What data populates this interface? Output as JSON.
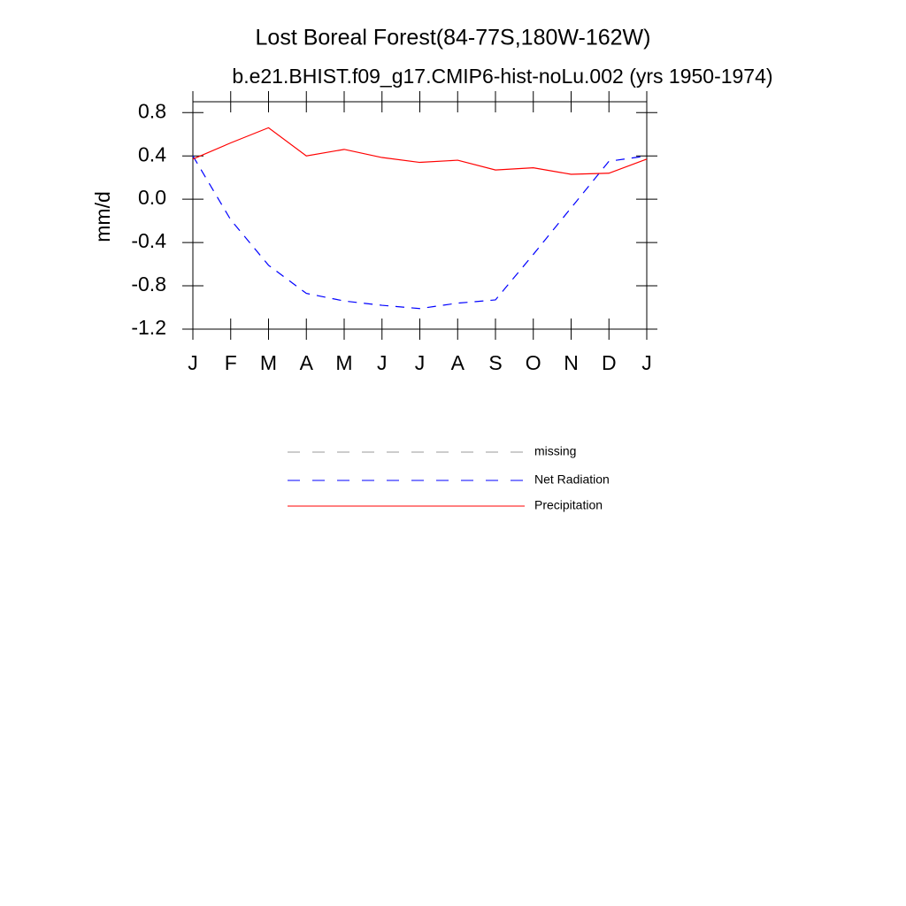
{
  "chart_data": {
    "type": "line",
    "title": "Lost Boreal Forest(84-77S,180W-162W)",
    "subtitle": "b.e21.BHIST.f09_g17.CMIP6-hist-noLu.002 (yrs 1950-1974)",
    "y_label": "mm/d",
    "categories": [
      "J",
      "F",
      "M",
      "A",
      "M",
      "J",
      "J",
      "A",
      "S",
      "O",
      "N",
      "D",
      "J"
    ],
    "ylim": [
      -1.2,
      0.9
    ],
    "yticks": [
      {
        "value": 0.8,
        "label": "0.8"
      },
      {
        "value": 0.4,
        "label": "0.4"
      },
      {
        "value": 0,
        "label": "0.0"
      },
      {
        "value": -0.4,
        "label": "-0.4"
      },
      {
        "value": -0.8,
        "label": "-0.8"
      },
      {
        "value": -1.2,
        "label": "-1.2"
      }
    ],
    "series": [
      {
        "name": "missing",
        "color": "#999999",
        "dash": true,
        "values": [
          null,
          null,
          null,
          null,
          null,
          null,
          null,
          null,
          null,
          null,
          null,
          null,
          null
        ]
      },
      {
        "name": "Net Radiation",
        "color": "#0000ff",
        "dash": true,
        "values": [
          0.4,
          -0.19,
          -0.61,
          -0.87,
          -0.94,
          -0.98,
          -1.01,
          -0.96,
          -0.93,
          -0.51,
          -0.08,
          0.35,
          0.4
        ]
      },
      {
        "name": "Precipitation",
        "color": "#ff0000",
        "dash": false,
        "values": [
          0.37,
          0.52,
          0.66,
          0.4,
          0.46,
          0.385,
          0.34,
          0.36,
          0.27,
          0.29,
          0.23,
          0.24,
          0.37
        ]
      }
    ]
  }
}
